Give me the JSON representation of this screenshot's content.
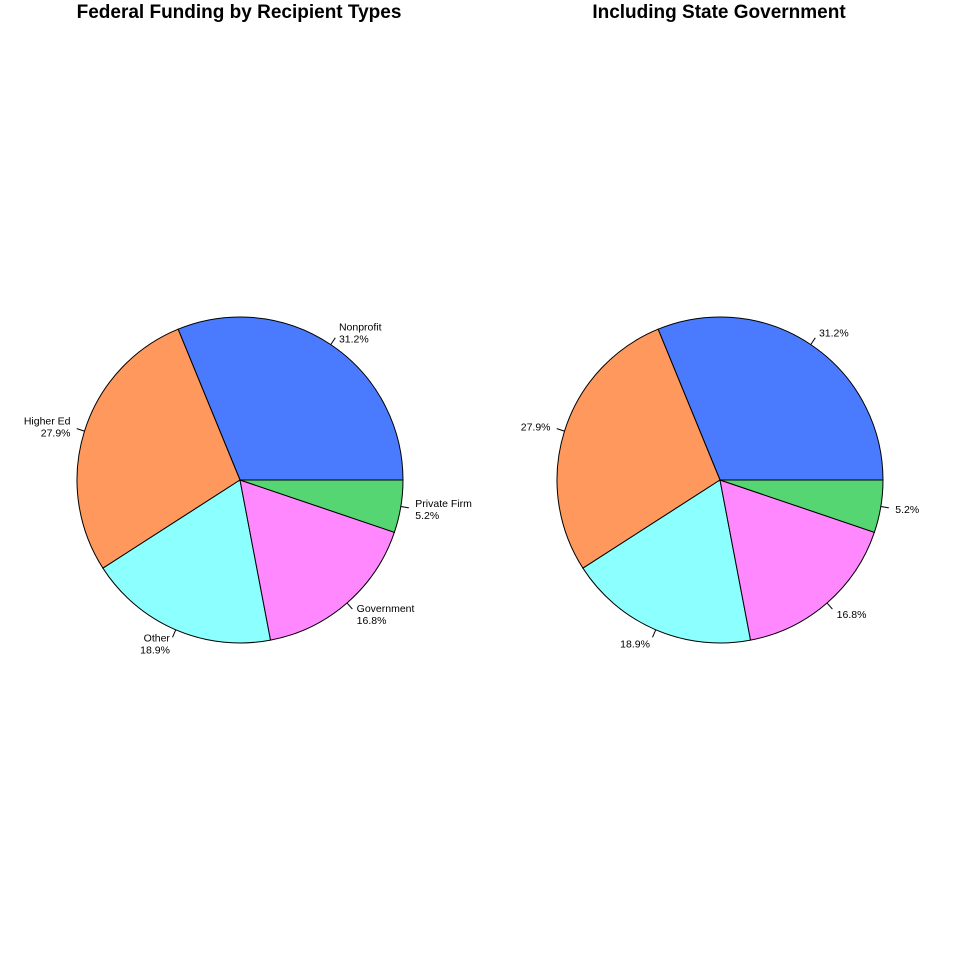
{
  "chart_data": [
    {
      "type": "pie",
      "title": "Federal Funding by Recipient Types",
      "slices": [
        {
          "name": "Nonprofit",
          "value": 31.2,
          "label": "31.2%",
          "color": "#4A7BFF"
        },
        {
          "name": "Higher Ed",
          "value": 27.9,
          "label": "27.9%",
          "color": "#FF985C"
        },
        {
          "name": "Other",
          "value": 18.9,
          "label": "18.9%",
          "color": "#8CFFFF"
        },
        {
          "name": "Government",
          "value": 16.8,
          "label": "16.8%",
          "color": "#FF88FF"
        },
        {
          "name": "Private Firm",
          "value": 5.2,
          "label": "5.2%",
          "color": "#55D672"
        }
      ],
      "show_names": true,
      "start_angle_deg": 0,
      "direction": "counterclockwise"
    },
    {
      "type": "pie",
      "title": "Including State Government",
      "slices": [
        {
          "value": 31.2,
          "label": "31.2%",
          "color": "#4A7BFF"
        },
        {
          "value": 27.9,
          "label": "27.9%",
          "color": "#FF985C"
        },
        {
          "value": 18.9,
          "label": "18.9%",
          "color": "#8CFFFF"
        },
        {
          "value": 16.8,
          "label": "16.8%",
          "color": "#FF88FF"
        },
        {
          "value": 5.2,
          "label": "5.2%",
          "color": "#55D672"
        }
      ],
      "show_names": false,
      "start_angle_deg": 0,
      "direction": "counterclockwise"
    }
  ]
}
